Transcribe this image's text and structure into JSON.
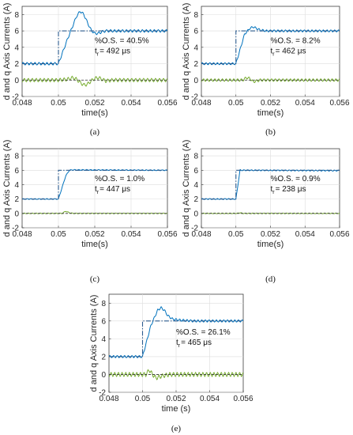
{
  "figure": {
    "colors": {
      "id": "#77ac30",
      "iq": "#0072bd",
      "iq_ref": "#2c5b8e",
      "id_ref": "#333333"
    }
  },
  "chart_data": [
    {
      "type": "line",
      "panel": "a",
      "caption": "(a)",
      "xlabel": "time(s)",
      "ylabel": "d and q Axis Currents (A)",
      "xlim": [
        0.048,
        0.056
      ],
      "ylim": [
        -2,
        9
      ],
      "xticks": [
        "0.048",
        "0.05",
        "0.052",
        "0.054",
        "0.056"
      ],
      "yticks": [
        "-2",
        "0",
        "2",
        "4",
        "6",
        "8"
      ],
      "grid": true,
      "annotation": {
        "os": "%O.S. = 40.5%",
        "tr_sym": "t",
        "tr_sub": "r",
        "tr_val": "= 492 μs"
      },
      "series": [
        {
          "kind": "iq",
          "x": [
            0.048,
            0.04999,
            0.05,
            0.0505,
            0.051,
            0.0512,
            0.0514,
            0.0516,
            0.0518,
            0.052,
            0.0522,
            0.0524,
            0.0526,
            0.053,
            0.054,
            0.0556
          ],
          "values": [
            2,
            2,
            2,
            5,
            7.8,
            8.4,
            8.0,
            7.0,
            6.1,
            5.7,
            5.7,
            5.9,
            6.0,
            6.0,
            6.0,
            6.0
          ],
          "noise": 0.15
        },
        {
          "kind": "iq_ref",
          "x": [
            0.048,
            0.05,
            0.05,
            0.056
          ],
          "values": [
            2,
            2,
            6,
            6
          ]
        },
        {
          "kind": "id",
          "x": [
            0.048,
            0.05,
            0.0505,
            0.0508,
            0.051,
            0.0512,
            0.0514,
            0.0516,
            0.0518,
            0.052,
            0.0522,
            0.0524,
            0.0526,
            0.053,
            0.054,
            0.0556
          ],
          "values": [
            0,
            0,
            0.1,
            0.3,
            0.1,
            -0.3,
            -0.6,
            -0.5,
            -0.1,
            0.2,
            0.3,
            0.1,
            -0.1,
            0,
            0,
            0
          ],
          "noise": 0.2
        },
        {
          "kind": "id_ref",
          "x": [
            0.048,
            0.056
          ],
          "values": [
            0,
            0
          ]
        }
      ]
    },
    {
      "type": "line",
      "panel": "b",
      "caption": "(b)",
      "xlabel": "time(s)",
      "ylabel": "d and q Axis Currents (A)",
      "xlim": [
        0.048,
        0.056
      ],
      "ylim": [
        -2,
        9
      ],
      "xticks": [
        "0.048",
        "0.05",
        "0.052",
        "0.054",
        "0.056"
      ],
      "yticks": [
        "-2",
        "0",
        "2",
        "4",
        "6",
        "8"
      ],
      "grid": true,
      "annotation": {
        "os": "%O.S. = 8.2%",
        "tr_sym": "t",
        "tr_sub": "r",
        "tr_val": "= 462 μs"
      },
      "series": [
        {
          "kind": "iq",
          "x": [
            0.048,
            0.04999,
            0.05,
            0.0505,
            0.0508,
            0.051,
            0.0512,
            0.0514,
            0.0518,
            0.0556
          ],
          "values": [
            2,
            2,
            2,
            5.6,
            6.3,
            6.5,
            6.3,
            6.1,
            6.0,
            6.0
          ],
          "noise": 0.12
        },
        {
          "kind": "iq_ref",
          "x": [
            0.048,
            0.05,
            0.05,
            0.056
          ],
          "values": [
            2,
            2,
            6,
            6
          ]
        },
        {
          "kind": "id",
          "x": [
            0.048,
            0.0504,
            0.0506,
            0.0508,
            0.051,
            0.0514,
            0.0556
          ],
          "values": [
            0,
            0,
            0.3,
            0.2,
            -0.2,
            0,
            0
          ],
          "noise": 0.15
        },
        {
          "kind": "id_ref",
          "x": [
            0.048,
            0.056
          ],
          "values": [
            0,
            0
          ]
        }
      ]
    },
    {
      "type": "line",
      "panel": "c",
      "caption": "(c)",
      "xlabel": "time(s)",
      "ylabel": "d and q Axis Currents (A)",
      "xlim": [
        0.048,
        0.056
      ],
      "ylim": [
        -2,
        9
      ],
      "xticks": [
        "0.048",
        "0.05",
        "0.052",
        "0.054",
        "0.056"
      ],
      "yticks": [
        "-2",
        "0",
        "2",
        "4",
        "6",
        "8"
      ],
      "grid": true,
      "annotation": {
        "os": "%O.S. = 1.0%",
        "tr_sym": "t",
        "tr_sub": "r",
        "tr_val": "= 447 μs"
      },
      "series": [
        {
          "kind": "iq",
          "x": [
            0.048,
            0.04999,
            0.05,
            0.0504,
            0.0506,
            0.0508,
            0.0556
          ],
          "values": [
            2,
            2,
            2,
            5.2,
            6.0,
            6.05,
            6.0
          ],
          "noise": 0.06
        },
        {
          "kind": "iq_ref",
          "x": [
            0.048,
            0.05,
            0.05,
            0.056
          ],
          "values": [
            2,
            2,
            6,
            6
          ]
        },
        {
          "kind": "id",
          "x": [
            0.048,
            0.0502,
            0.0504,
            0.0506,
            0.0508,
            0.0556
          ],
          "values": [
            0,
            0,
            0.3,
            0.1,
            0,
            0
          ],
          "noise": 0.05
        },
        {
          "kind": "id_ref",
          "x": [
            0.048,
            0.056
          ],
          "values": [
            0,
            0
          ]
        }
      ]
    },
    {
      "type": "line",
      "panel": "d",
      "caption": "(d)",
      "xlabel": "time(s)",
      "ylabel": "d and q Axis Currents (A)",
      "xlim": [
        0.048,
        0.056
      ],
      "ylim": [
        -2,
        9
      ],
      "xticks": [
        "0.048",
        "0.05",
        "0.052",
        "0.054",
        "0.056"
      ],
      "yticks": [
        "-2",
        "0",
        "2",
        "4",
        "6",
        "8"
      ],
      "grid": true,
      "annotation": {
        "os": "%O.S. = 0.9%",
        "tr_sym": "t",
        "tr_sub": "r",
        "tr_val": "= 238 μs"
      },
      "series": [
        {
          "kind": "iq",
          "x": [
            0.048,
            0.04999,
            0.05,
            0.05024,
            0.0503,
            0.0556
          ],
          "values": [
            2,
            2,
            2,
            6.05,
            6.0,
            5.95
          ],
          "noise": 0.07
        },
        {
          "kind": "iq_ref",
          "x": [
            0.048,
            0.05,
            0.05,
            0.056
          ],
          "values": [
            2,
            2,
            6,
            6
          ]
        },
        {
          "kind": "id",
          "x": [
            0.048,
            0.0501,
            0.0502,
            0.0504,
            0.0556
          ],
          "values": [
            0,
            0,
            0.1,
            0,
            0
          ],
          "noise": 0.05
        },
        {
          "kind": "id_ref",
          "x": [
            0.048,
            0.056
          ],
          "values": [
            0,
            0
          ]
        }
      ]
    },
    {
      "type": "line",
      "panel": "e",
      "caption": "(e)",
      "xlabel": "time (s)",
      "ylabel": "d and q Axis Currents (A)",
      "xlim": [
        0.048,
        0.056
      ],
      "ylim": [
        -2,
        9
      ],
      "xticks": [
        "0.048",
        "0.05",
        "0.052",
        "0.054",
        "0.056"
      ],
      "yticks": [
        "-2",
        "0",
        "2",
        "4",
        "6",
        "8"
      ],
      "grid": true,
      "annotation": {
        "os": "%O.S. = 26.1%",
        "tr_sym": "t",
        "tr_sub": "r",
        "tr_val": "= 465 μs"
      },
      "series": [
        {
          "kind": "iq",
          "x": [
            0.048,
            0.04999,
            0.05,
            0.0505,
            0.0509,
            0.0511,
            0.0513,
            0.0515,
            0.0518,
            0.0522,
            0.053,
            0.0556
          ],
          "values": [
            2,
            2,
            2,
            5.5,
            7.2,
            7.5,
            7.2,
            6.6,
            6.2,
            6.1,
            6.0,
            6.0
          ],
          "noise": 0.12
        },
        {
          "kind": "iq_ref",
          "x": [
            0.048,
            0.05,
            0.05,
            0.056
          ],
          "values": [
            2,
            2,
            6,
            6
          ]
        },
        {
          "kind": "id",
          "x": [
            0.048,
            0.0502,
            0.0504,
            0.0506,
            0.0508,
            0.0511,
            0.0516,
            0.052,
            0.0556
          ],
          "values": [
            0,
            0,
            0.5,
            0,
            -0.4,
            -0.2,
            0,
            0,
            0
          ],
          "noise": 0.22
        },
        {
          "kind": "id_ref",
          "x": [
            0.048,
            0.056
          ],
          "values": [
            0,
            0
          ]
        }
      ]
    }
  ]
}
